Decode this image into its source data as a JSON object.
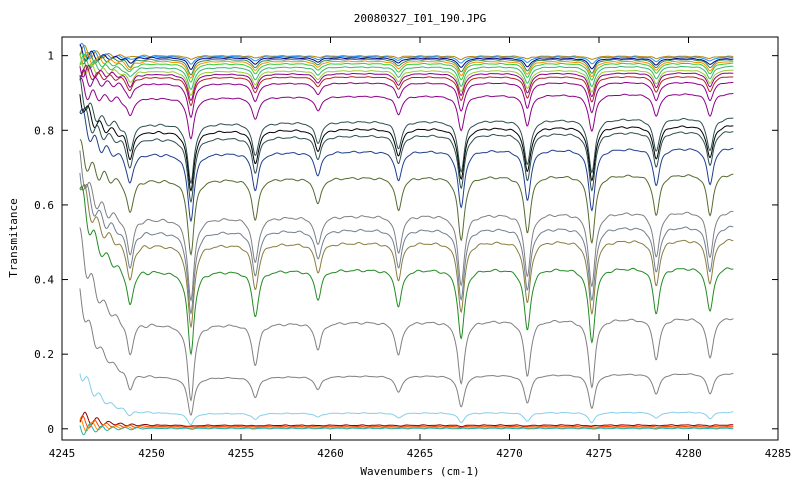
{
  "chart_data": {
    "type": "line",
    "title": "20080327_I01_190.JPG",
    "xlabel": "Wavenumbers (cm-1)",
    "ylabel": "Transmitance",
    "xlim": [
      4245,
      4285
    ],
    "ylim": [
      -0.03,
      1.05
    ],
    "x_ticks": [
      4245,
      4250,
      4255,
      4260,
      4265,
      4270,
      4275,
      4280,
      4285
    ],
    "x_tick_labels": [
      "4245",
      "4250",
      "4255",
      "4260",
      "4265",
      "4270",
      "4275",
      "4280",
      "4285"
    ],
    "y_ticks": [
      0,
      0.2,
      0.4,
      0.6,
      0.8,
      1
    ],
    "y_tick_labels": [
      "0",
      "0.2",
      "0.4",
      "0.6",
      "0.8",
      "1"
    ],
    "grid": false,
    "legend": "none",
    "x_range_data": [
      4246,
      4282.5
    ],
    "absorption_lines": [
      4248.8,
      4252.2,
      4255.8,
      4259.3,
      4263.8,
      4267.3,
      4271.0,
      4274.6,
      4278.2,
      4281.2
    ],
    "line_depths": [
      0.45,
      1.0,
      0.55,
      0.35,
      0.45,
      0.85,
      0.75,
      0.9,
      0.55,
      0.55
    ],
    "series": [
      {
        "color": "#b8860b",
        "start": 1.02,
        "baseline": 1.0,
        "depth": 0.01,
        "end": 0.998
      },
      {
        "color": "#1e90ff",
        "start": 1.02,
        "baseline": 0.998,
        "depth": 0.02,
        "end": 0.996
      },
      {
        "color": "#000080",
        "start": 1.01,
        "baseline": 0.995,
        "depth": 0.03,
        "end": 0.992
      },
      {
        "color": "#2e8b57",
        "start": 1.0,
        "baseline": 0.99,
        "depth": 0.04,
        "end": 0.99
      },
      {
        "color": "#ff8c00",
        "start": 1.0,
        "baseline": 0.985,
        "depth": 0.045,
        "end": 0.985
      },
      {
        "color": "#32cd32",
        "start": 0.99,
        "baseline": 0.978,
        "depth": 0.05,
        "end": 0.98
      },
      {
        "color": "#3cb371",
        "start": 0.99,
        "baseline": 0.968,
        "depth": 0.06,
        "end": 0.972
      },
      {
        "color": "#9acd32",
        "start": 0.98,
        "baseline": 0.958,
        "depth": 0.065,
        "end": 0.962
      },
      {
        "color": "#8b008b",
        "start": 0.97,
        "baseline": 0.95,
        "depth": 0.07,
        "end": 0.955
      },
      {
        "color": "#b22222",
        "start": 0.97,
        "baseline": 0.942,
        "depth": 0.075,
        "end": 0.945
      },
      {
        "color": "#8b008b",
        "start": 0.95,
        "baseline": 0.925,
        "depth": 0.09,
        "end": 0.93
      },
      {
        "color": "#8b008b",
        "start": 0.92,
        "baseline": 0.885,
        "depth": 0.11,
        "end": 0.9
      },
      {
        "color": "#2f4f4f",
        "start": 0.92,
        "baseline": 0.815,
        "depth": 0.16,
        "end": 0.835
      },
      {
        "color": "#000000",
        "start": 0.9,
        "baseline": 0.795,
        "depth": 0.16,
        "end": 0.815
      },
      {
        "color": "#2f4f4f",
        "start": 0.88,
        "baseline": 0.775,
        "depth": 0.17,
        "end": 0.8
      },
      {
        "color": "#1e3f8f",
        "start": 0.86,
        "baseline": 0.735,
        "depth": 0.18,
        "end": 0.755
      },
      {
        "color": "#556b2f",
        "start": 0.75,
        "baseline": 0.665,
        "depth": 0.2,
        "end": 0.685
      },
      {
        "color": "#808080",
        "start": 0.72,
        "baseline": 0.56,
        "depth": 0.22,
        "end": 0.585
      },
      {
        "color": "#708090",
        "start": 0.7,
        "baseline": 0.525,
        "depth": 0.22,
        "end": 0.545
      },
      {
        "color": "#8b7d3f",
        "start": 0.68,
        "baseline": 0.49,
        "depth": 0.22,
        "end": 0.51
      },
      {
        "color": "#228b22",
        "start": 0.65,
        "baseline": 0.42,
        "depth": 0.22,
        "end": 0.435
      },
      {
        "color": "#808080",
        "start": 0.51,
        "baseline": 0.275,
        "depth": 0.2,
        "end": 0.3
      },
      {
        "color": "#808080",
        "start": 0.36,
        "baseline": 0.135,
        "depth": 0.1,
        "end": 0.15
      },
      {
        "color": "#87ceeb",
        "start": 0.16,
        "baseline": 0.04,
        "depth": 0.03,
        "end": 0.045
      },
      {
        "color": "#8b0000",
        "start": 0.035,
        "baseline": 0.009,
        "depth": 0.003,
        "end": 0.01
      },
      {
        "color": "#ff4500",
        "start": 0.02,
        "baseline": 0.006,
        "depth": 0.002,
        "end": 0.006
      },
      {
        "color": "#ff8c00",
        "start": 0.01,
        "baseline": 0.003,
        "depth": 0.002,
        "end": 0.003
      },
      {
        "color": "#20b2aa",
        "start": 0.0,
        "baseline": 0.001,
        "depth": 0.001,
        "end": 0.001
      }
    ]
  }
}
